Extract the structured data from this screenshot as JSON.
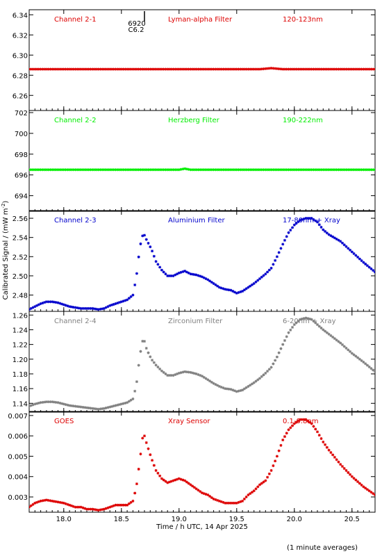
{
  "figure": {
    "ylabel": "Calibrated Signal / (mW m",
    "ylabel_sup": "-2",
    "ylabel_close": ")",
    "xlabel": "Time / h UTC, 14 Apr 2025",
    "footnote": "(1 minute averages)",
    "flare_marker_top": "6920",
    "flare_marker_bottom": "C6.2"
  },
  "chart_data": [
    {
      "type": "scatter",
      "panel": "ch21",
      "labels": [
        "Channel 2-1",
        "Lyman-alpha Filter",
        "120-123nm"
      ],
      "color": "#dd0000",
      "ylim": [
        6.245,
        6.345
      ],
      "yticks": [
        6.26,
        6.28,
        6.3,
        6.32,
        6.34
      ],
      "ytick_labels": [
        "6.26",
        "6.28",
        "6.30",
        "6.32",
        "6.34"
      ],
      "xlim": [
        17.7,
        20.7
      ],
      "points": [
        [
          17.7,
          6.286
        ],
        [
          18.0,
          6.286
        ],
        [
          18.5,
          6.286
        ],
        [
          19.0,
          6.286
        ],
        [
          19.5,
          6.286
        ],
        [
          19.7,
          6.286
        ],
        [
          19.8,
          6.287
        ],
        [
          19.9,
          6.286
        ],
        [
          20.2,
          6.286
        ],
        [
          20.7,
          6.286
        ]
      ]
    },
    {
      "type": "scatter",
      "panel": "ch22",
      "labels": [
        "Channel 2-2",
        "Herzberg Filter",
        "190-222nm"
      ],
      "color": "#00ee00",
      "ylim": [
        692.5,
        702.2
      ],
      "yticks": [
        694,
        696,
        698,
        700,
        702
      ],
      "ytick_labels": [
        "694",
        "696",
        "698",
        "700",
        "702"
      ],
      "xlim": [
        17.7,
        20.7
      ],
      "points": [
        [
          17.7,
          696.5
        ],
        [
          18.0,
          696.5
        ],
        [
          18.5,
          696.5
        ],
        [
          19.0,
          696.5
        ],
        [
          19.05,
          696.6
        ],
        [
          19.1,
          696.5
        ],
        [
          19.5,
          696.5
        ],
        [
          20.0,
          696.5
        ],
        [
          20.7,
          696.5
        ]
      ]
    },
    {
      "type": "scatter",
      "panel": "ch23",
      "labels": [
        "Channel 2-3",
        "Aluminium Filter",
        "17-80nm + Xray"
      ],
      "color": "#0000cc",
      "ylim": [
        2.463,
        2.568
      ],
      "yticks": [
        2.48,
        2.5,
        2.52,
        2.54,
        2.56
      ],
      "ytick_labels": [
        "2.48",
        "2.50",
        "2.52",
        "2.54",
        "2.56"
      ],
      "xlim": [
        17.7,
        20.7
      ],
      "points": [
        [
          17.7,
          2.465
        ],
        [
          17.75,
          2.468
        ],
        [
          17.8,
          2.471
        ],
        [
          17.85,
          2.473
        ],
        [
          17.9,
          2.473
        ],
        [
          17.95,
          2.472
        ],
        [
          18.0,
          2.47
        ],
        [
          18.05,
          2.468
        ],
        [
          18.1,
          2.467
        ],
        [
          18.15,
          2.466
        ],
        [
          18.2,
          2.466
        ],
        [
          18.25,
          2.466
        ],
        [
          18.3,
          2.465
        ],
        [
          18.35,
          2.466
        ],
        [
          18.4,
          2.469
        ],
        [
          18.45,
          2.471
        ],
        [
          18.5,
          2.473
        ],
        [
          18.55,
          2.475
        ],
        [
          18.6,
          2.48
        ],
        [
          18.63,
          2.499
        ],
        [
          18.66,
          2.53
        ],
        [
          18.69,
          2.545
        ],
        [
          18.72,
          2.537
        ],
        [
          18.76,
          2.528
        ],
        [
          18.8,
          2.515
        ],
        [
          18.85,
          2.506
        ],
        [
          18.9,
          2.5
        ],
        [
          18.95,
          2.5
        ],
        [
          19.0,
          2.503
        ],
        [
          19.05,
          2.505
        ],
        [
          19.1,
          2.502
        ],
        [
          19.15,
          2.501
        ],
        [
          19.2,
          2.499
        ],
        [
          19.25,
          2.496
        ],
        [
          19.3,
          2.492
        ],
        [
          19.35,
          2.488
        ],
        [
          19.4,
          2.486
        ],
        [
          19.45,
          2.485
        ],
        [
          19.5,
          2.482
        ],
        [
          19.55,
          2.484
        ],
        [
          19.6,
          2.488
        ],
        [
          19.65,
          2.492
        ],
        [
          19.7,
          2.497
        ],
        [
          19.75,
          2.502
        ],
        [
          19.8,
          2.508
        ],
        [
          19.85,
          2.52
        ],
        [
          19.9,
          2.533
        ],
        [
          19.95,
          2.545
        ],
        [
          20.0,
          2.553
        ],
        [
          20.05,
          2.558
        ],
        [
          20.1,
          2.56
        ],
        [
          20.15,
          2.56
        ],
        [
          20.2,
          2.556
        ],
        [
          20.25,
          2.548
        ],
        [
          20.3,
          2.543
        ],
        [
          20.4,
          2.536
        ],
        [
          20.5,
          2.525
        ],
        [
          20.6,
          2.514
        ],
        [
          20.7,
          2.504
        ]
      ]
    },
    {
      "type": "scatter",
      "panel": "ch24",
      "labels": [
        "Channel 2-4",
        "Zirconium Filter",
        "6-20nm + Xray"
      ],
      "color": "#808080",
      "ylim": [
        1.128,
        1.265
      ],
      "yticks": [
        1.14,
        1.16,
        1.18,
        1.2,
        1.22,
        1.24,
        1.26
      ],
      "ytick_labels": [
        "1.14",
        "1.16",
        "1.18",
        "1.20",
        "1.22",
        "1.24",
        "1.26"
      ],
      "xlim": [
        17.7,
        20.7
      ],
      "points": [
        [
          17.7,
          1.136
        ],
        [
          17.75,
          1.139
        ],
        [
          17.8,
          1.141
        ],
        [
          17.85,
          1.142
        ],
        [
          17.9,
          1.142
        ],
        [
          17.95,
          1.141
        ],
        [
          18.0,
          1.139
        ],
        [
          18.05,
          1.137
        ],
        [
          18.1,
          1.136
        ],
        [
          18.15,
          1.135
        ],
        [
          18.2,
          1.134
        ],
        [
          18.25,
          1.133
        ],
        [
          18.3,
          1.132
        ],
        [
          18.35,
          1.133
        ],
        [
          18.4,
          1.135
        ],
        [
          18.45,
          1.137
        ],
        [
          18.5,
          1.139
        ],
        [
          18.55,
          1.141
        ],
        [
          18.6,
          1.146
        ],
        [
          18.63,
          1.165
        ],
        [
          18.66,
          1.205
        ],
        [
          18.69,
          1.23
        ],
        [
          18.72,
          1.213
        ],
        [
          18.76,
          1.2
        ],
        [
          18.8,
          1.192
        ],
        [
          18.85,
          1.184
        ],
        [
          18.9,
          1.178
        ],
        [
          18.95,
          1.178
        ],
        [
          19.0,
          1.181
        ],
        [
          19.05,
          1.183
        ],
        [
          19.1,
          1.182
        ],
        [
          19.15,
          1.18
        ],
        [
          19.2,
          1.177
        ],
        [
          19.25,
          1.172
        ],
        [
          19.3,
          1.167
        ],
        [
          19.35,
          1.163
        ],
        [
          19.4,
          1.16
        ],
        [
          19.45,
          1.159
        ],
        [
          19.5,
          1.156
        ],
        [
          19.55,
          1.158
        ],
        [
          19.6,
          1.163
        ],
        [
          19.65,
          1.168
        ],
        [
          19.7,
          1.174
        ],
        [
          19.75,
          1.181
        ],
        [
          19.8,
          1.189
        ],
        [
          19.85,
          1.203
        ],
        [
          19.9,
          1.22
        ],
        [
          19.95,
          1.236
        ],
        [
          20.0,
          1.247
        ],
        [
          20.05,
          1.254
        ],
        [
          20.1,
          1.256
        ],
        [
          20.15,
          1.254
        ],
        [
          20.2,
          1.247
        ],
        [
          20.25,
          1.24
        ],
        [
          20.3,
          1.234
        ],
        [
          20.4,
          1.222
        ],
        [
          20.5,
          1.208
        ],
        [
          20.6,
          1.196
        ],
        [
          20.7,
          1.183
        ]
      ]
    },
    {
      "type": "scatter",
      "panel": "goes",
      "labels": [
        "GOES",
        "Xray Sensor",
        "0.1-0.8nm"
      ],
      "color": "#dd0000",
      "ylim": [
        0.00225,
        0.0072
      ],
      "yticks": [
        0.003,
        0.004,
        0.005,
        0.006,
        0.007
      ],
      "ytick_labels": [
        "0.003",
        "0.004",
        "0.005",
        "0.006",
        "0.007"
      ],
      "xlim": [
        17.7,
        20.7
      ],
      "points": [
        [
          17.7,
          0.0025
        ],
        [
          17.75,
          0.0027
        ],
        [
          17.8,
          0.0028
        ],
        [
          17.85,
          0.00285
        ],
        [
          17.9,
          0.0028
        ],
        [
          17.95,
          0.00275
        ],
        [
          18.0,
          0.0027
        ],
        [
          18.05,
          0.0026
        ],
        [
          18.1,
          0.0025
        ],
        [
          18.15,
          0.0025
        ],
        [
          18.2,
          0.0024
        ],
        [
          18.25,
          0.0024
        ],
        [
          18.3,
          0.00235
        ],
        [
          18.35,
          0.0024
        ],
        [
          18.4,
          0.0025
        ],
        [
          18.45,
          0.0026
        ],
        [
          18.5,
          0.0026
        ],
        [
          18.55,
          0.0026
        ],
        [
          18.6,
          0.0028
        ],
        [
          18.63,
          0.0035
        ],
        [
          18.66,
          0.0048
        ],
        [
          18.69,
          0.0062
        ],
        [
          18.72,
          0.0056
        ],
        [
          18.76,
          0.0049
        ],
        [
          18.8,
          0.0043
        ],
        [
          18.85,
          0.0039
        ],
        [
          18.9,
          0.0037
        ],
        [
          18.95,
          0.0038
        ],
        [
          19.0,
          0.0039
        ],
        [
          19.05,
          0.0038
        ],
        [
          19.1,
          0.0036
        ],
        [
          19.15,
          0.0034
        ],
        [
          19.2,
          0.0032
        ],
        [
          19.25,
          0.0031
        ],
        [
          19.3,
          0.0029
        ],
        [
          19.35,
          0.0028
        ],
        [
          19.4,
          0.0027
        ],
        [
          19.45,
          0.0027
        ],
        [
          19.5,
          0.0027
        ],
        [
          19.55,
          0.0028
        ],
        [
          19.6,
          0.0031
        ],
        [
          19.65,
          0.0033
        ],
        [
          19.7,
          0.0036
        ],
        [
          19.75,
          0.0038
        ],
        [
          19.8,
          0.0043
        ],
        [
          19.85,
          0.005
        ],
        [
          19.9,
          0.0058
        ],
        [
          19.95,
          0.0063
        ],
        [
          20.0,
          0.0066
        ],
        [
          20.05,
          0.0068
        ],
        [
          20.1,
          0.0068
        ],
        [
          20.15,
          0.0066
        ],
        [
          20.2,
          0.0062
        ],
        [
          20.25,
          0.0057
        ],
        [
          20.3,
          0.0053
        ],
        [
          20.4,
          0.0046
        ],
        [
          20.5,
          0.004
        ],
        [
          20.6,
          0.0035
        ],
        [
          20.7,
          0.0031
        ]
      ]
    }
  ],
  "xaxis": {
    "xlim": [
      17.7,
      20.7
    ],
    "ticks": [
      18.0,
      18.5,
      19.0,
      19.5,
      20.0,
      20.5
    ],
    "tick_labels": [
      "18.0",
      "18.5",
      "19.0",
      "19.5",
      "20.0",
      "20.5"
    ]
  }
}
